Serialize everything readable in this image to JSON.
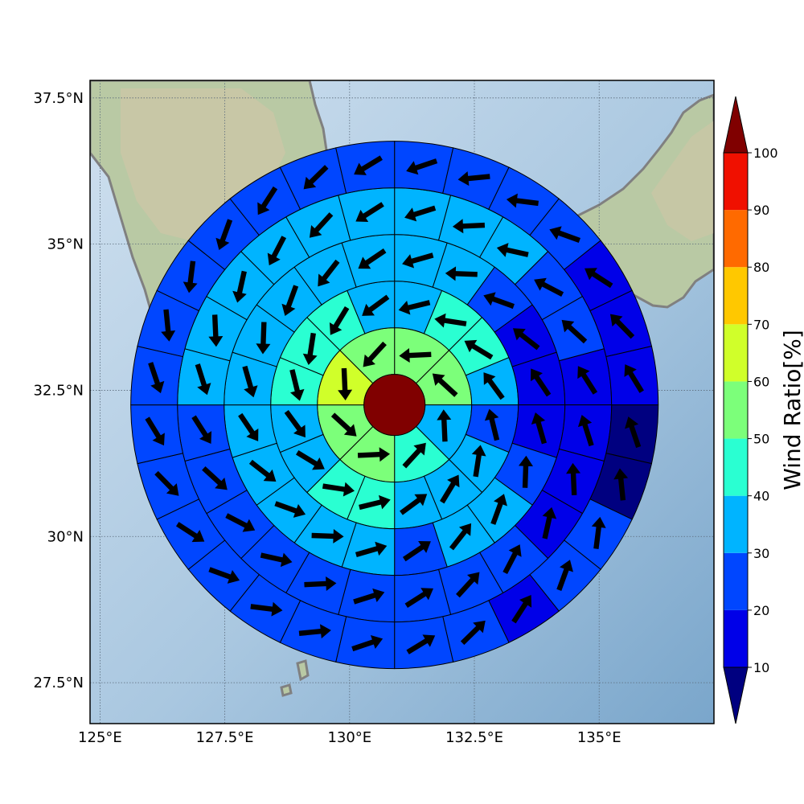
{
  "map": {
    "lon_range": [
      124.8,
      137.3
    ],
    "lat_range": [
      26.8,
      37.8
    ],
    "lon_ticks": [
      {
        "value": 125,
        "label": "125°E"
      },
      {
        "value": 127.5,
        "label": "127.5°E"
      },
      {
        "value": 130,
        "label": "130°E"
      },
      {
        "value": 132.5,
        "label": "132.5°E"
      },
      {
        "value": 135,
        "label": "135°E"
      }
    ],
    "lat_ticks": [
      {
        "value": 37.5,
        "label": "37.5°N"
      },
      {
        "value": 35,
        "label": "35°N"
      },
      {
        "value": 32.5,
        "label": "32.5°N"
      },
      {
        "value": 30,
        "label": "30°N"
      },
      {
        "value": 27.5,
        "label": "27.5°N"
      }
    ],
    "grid": "dotted",
    "center": {
      "lon": 130.9,
      "lat": 32.25
    },
    "center_ratio": 100,
    "rings": [
      {
        "ratios": [
          55,
          55,
          30,
          40,
          55,
          55,
          65,
          55
        ]
      },
      {
        "ratios": [
          30,
          45,
          45,
          30,
          20,
          30,
          30,
          35,
          40,
          40,
          35,
          30,
          45,
          45,
          45,
          30
        ]
      },
      {
        "ratios": [
          30,
          30,
          25,
          15,
          15,
          15,
          25,
          30,
          30,
          25,
          30,
          30,
          35,
          30,
          30,
          30,
          35,
          35,
          30,
          30
        ]
      },
      {
        "ratios": [
          30,
          30,
          30,
          25,
          20,
          15,
          15,
          15,
          15,
          25,
          25,
          25,
          25,
          25,
          25,
          25,
          25,
          25,
          30,
          30,
          30,
          30,
          30,
          30
        ]
      },
      {
        "ratios": [
          25,
          25,
          25,
          20,
          15,
          15,
          15,
          5,
          5,
          20,
          20,
          15,
          20,
          20,
          20,
          20,
          20,
          20,
          20,
          25,
          25,
          25,
          25,
          25,
          25,
          25,
          25,
          25
        ]
      }
    ]
  },
  "colorbar": {
    "label": "Wind Ratio[%]",
    "ticks": [
      "10",
      "20",
      "30",
      "40",
      "50",
      "60",
      "70",
      "80",
      "90",
      "100"
    ],
    "colors": [
      "#000080",
      "#0000e8",
      "#0046ff",
      "#00b4ff",
      "#2affd2",
      "#7cff7a",
      "#d0ff2a",
      "#ffc800",
      "#ff6a00",
      "#f01000",
      "#800000"
    ],
    "extend": "both"
  }
}
